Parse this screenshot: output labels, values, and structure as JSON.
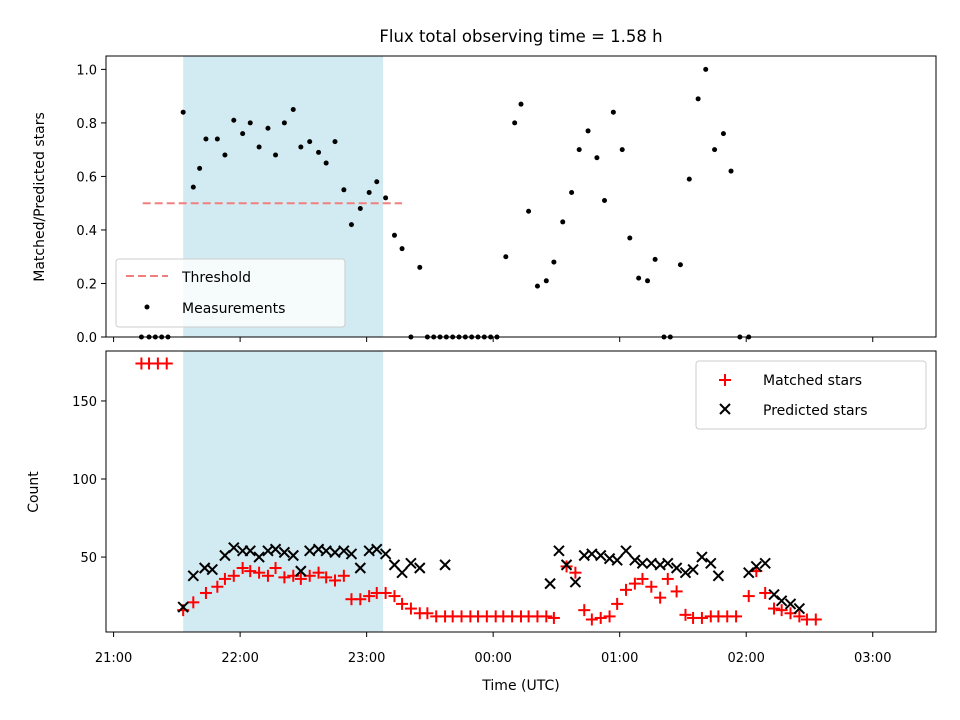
{
  "chart_data": [
    {
      "type": "scatter",
      "title": "Flux total observing time = 1.58 h",
      "xlabel": "",
      "ylabel": "Matched/Predicted stars",
      "ylim": [
        0,
        1.05
      ],
      "yticks": [
        "0.0",
        "0.2",
        "0.4",
        "0.6",
        "0.8",
        "1.0"
      ],
      "y_tick_values": [
        0,
        0.2,
        0.4,
        0.6,
        0.8,
        1.0
      ],
      "legend_placement": "lower-left",
      "shaded_interval_hours": [
        21.55,
        23.13
      ],
      "threshold": {
        "name": "Threshold",
        "value": 0.5,
        "x_range": [
          21.23,
          23.28
        ],
        "color": "#f08080"
      },
      "series": [
        {
          "name": "Measurements",
          "color": "#000000",
          "points": [
            [
              21.22,
              0
            ],
            [
              21.28,
              0
            ],
            [
              21.33,
              0
            ],
            [
              21.38,
              0
            ],
            [
              21.43,
              0
            ],
            [
              21.55,
              0.84
            ],
            [
              21.63,
              0.56
            ],
            [
              21.68,
              0.63
            ],
            [
              21.73,
              0.74
            ],
            [
              21.82,
              0.74
            ],
            [
              21.88,
              0.68
            ],
            [
              21.95,
              0.81
            ],
            [
              22.02,
              0.76
            ],
            [
              22.08,
              0.8
            ],
            [
              22.15,
              0.71
            ],
            [
              22.22,
              0.78
            ],
            [
              22.28,
              0.68
            ],
            [
              22.35,
              0.8
            ],
            [
              22.42,
              0.85
            ],
            [
              22.48,
              0.71
            ],
            [
              22.55,
              0.73
            ],
            [
              22.62,
              0.69
            ],
            [
              22.68,
              0.65
            ],
            [
              22.75,
              0.73
            ],
            [
              22.82,
              0.55
            ],
            [
              22.88,
              0.42
            ],
            [
              22.95,
              0.48
            ],
            [
              23.02,
              0.54
            ],
            [
              23.08,
              0.58
            ],
            [
              23.15,
              0.52
            ],
            [
              23.22,
              0.38
            ],
            [
              23.28,
              0.33
            ],
            [
              23.35,
              0.0
            ],
            [
              23.42,
              0.26
            ],
            [
              23.48,
              0.0
            ],
            [
              23.53,
              0.0
            ],
            [
              23.58,
              0.0
            ],
            [
              23.63,
              0.0
            ],
            [
              23.68,
              0.0
            ],
            [
              23.73,
              0.0
            ],
            [
              23.78,
              0.0
            ],
            [
              23.83,
              0.0
            ],
            [
              23.88,
              0.0
            ],
            [
              23.93,
              0.0
            ],
            [
              23.98,
              0.0
            ],
            [
              24.03,
              0.0
            ],
            [
              24.1,
              0.3
            ],
            [
              24.17,
              0.8
            ],
            [
              24.22,
              0.87
            ],
            [
              24.28,
              0.47
            ],
            [
              24.35,
              0.19
            ],
            [
              24.42,
              0.21
            ],
            [
              24.48,
              0.28
            ],
            [
              24.55,
              0.43
            ],
            [
              24.62,
              0.54
            ],
            [
              24.68,
              0.7
            ],
            [
              24.75,
              0.77
            ],
            [
              24.82,
              0.67
            ],
            [
              24.88,
              0.51
            ],
            [
              24.95,
              0.84
            ],
            [
              25.02,
              0.7
            ],
            [
              25.08,
              0.37
            ],
            [
              25.15,
              0.22
            ],
            [
              25.22,
              0.21
            ],
            [
              25.28,
              0.29
            ],
            [
              25.35,
              0.0
            ],
            [
              25.4,
              0.0
            ],
            [
              25.48,
              0.27
            ],
            [
              25.55,
              0.59
            ],
            [
              25.62,
              0.89
            ],
            [
              25.68,
              1.0
            ],
            [
              25.75,
              0.7
            ],
            [
              25.82,
              0.76
            ],
            [
              25.88,
              0.62
            ],
            [
              25.95,
              0.0
            ],
            [
              26.02,
              0.0
            ]
          ]
        }
      ]
    },
    {
      "type": "scatter",
      "xlabel": "Time (UTC)",
      "ylabel": "Count",
      "ylim": [
        2,
        182
      ],
      "yticks": [
        "50",
        "100",
        "150"
      ],
      "y_tick_values": [
        50,
        100,
        150
      ],
      "xticks": [
        "21:00",
        "22:00",
        "23:00",
        "00:00",
        "01:00",
        "02:00",
        "03:00"
      ],
      "x_tick_values": [
        21,
        22,
        23,
        24,
        25,
        26,
        27
      ],
      "xlim": [
        20.94,
        27.5
      ],
      "legend_placement": "upper-right",
      "shaded_interval_hours": [
        21.55,
        23.13
      ],
      "series": [
        {
          "name": "Matched stars",
          "marker": "+",
          "color": "#ff0000",
          "points": [
            [
              21.22,
              174
            ],
            [
              21.28,
              174
            ],
            [
              21.35,
              174
            ],
            [
              21.42,
              174
            ],
            [
              21.55,
              16
            ],
            [
              21.63,
              21
            ],
            [
              21.73,
              27
            ],
            [
              21.82,
              31
            ],
            [
              21.88,
              36
            ],
            [
              21.95,
              38
            ],
            [
              22.02,
              43
            ],
            [
              22.08,
              41
            ],
            [
              22.15,
              40
            ],
            [
              22.22,
              38
            ],
            [
              22.28,
              43
            ],
            [
              22.35,
              37
            ],
            [
              22.42,
              38
            ],
            [
              22.48,
              36
            ],
            [
              22.55,
              38
            ],
            [
              22.62,
              40
            ],
            [
              22.68,
              37
            ],
            [
              22.75,
              35
            ],
            [
              22.82,
              38
            ],
            [
              22.88,
              23
            ],
            [
              22.95,
              23
            ],
            [
              23.02,
              25
            ],
            [
              23.08,
              27
            ],
            [
              23.15,
              27
            ],
            [
              23.22,
              25
            ],
            [
              23.28,
              20
            ],
            [
              23.35,
              17
            ],
            [
              23.42,
              14
            ],
            [
              23.48,
              14
            ],
            [
              23.55,
              12
            ],
            [
              23.62,
              12
            ],
            [
              23.68,
              12
            ],
            [
              23.75,
              12
            ],
            [
              23.82,
              12
            ],
            [
              23.88,
              12
            ],
            [
              23.95,
              12
            ],
            [
              24.02,
              12
            ],
            [
              24.08,
              12
            ],
            [
              24.15,
              12
            ],
            [
              24.22,
              12
            ],
            [
              24.28,
              12
            ],
            [
              24.35,
              12
            ],
            [
              24.42,
              12
            ],
            [
              24.48,
              11
            ],
            [
              24.58,
              44
            ],
            [
              24.65,
              40
            ],
            [
              24.72,
              16
            ],
            [
              24.78,
              10
            ],
            [
              24.85,
              11
            ],
            [
              24.92,
              12
            ],
            [
              24.98,
              20
            ],
            [
              25.05,
              29
            ],
            [
              25.12,
              33
            ],
            [
              25.18,
              36
            ],
            [
              25.25,
              31
            ],
            [
              25.32,
              24
            ],
            [
              25.38,
              36
            ],
            [
              25.45,
              28
            ],
            [
              25.52,
              13
            ],
            [
              25.58,
              11
            ],
            [
              25.65,
              11
            ],
            [
              25.72,
              12
            ],
            [
              25.78,
              12
            ],
            [
              25.85,
              12
            ],
            [
              25.92,
              12
            ],
            [
              26.02,
              25
            ],
            [
              26.08,
              41
            ],
            [
              26.15,
              27
            ],
            [
              26.22,
              17
            ],
            [
              26.28,
              16
            ],
            [
              26.35,
              14
            ],
            [
              26.42,
              12
            ],
            [
              26.48,
              10
            ],
            [
              26.55,
              10
            ]
          ]
        },
        {
          "name": "Predicted stars",
          "marker": "x",
          "color": "#000000",
          "points": [
            [
              21.55,
              18
            ],
            [
              21.63,
              38
            ],
            [
              21.72,
              43
            ],
            [
              21.78,
              42
            ],
            [
              21.88,
              51
            ],
            [
              21.95,
              56
            ],
            [
              22.02,
              54
            ],
            [
              22.08,
              54
            ],
            [
              22.15,
              50
            ],
            [
              22.22,
              54
            ],
            [
              22.28,
              55
            ],
            [
              22.35,
              53
            ],
            [
              22.42,
              51
            ],
            [
              22.48,
              41
            ],
            [
              22.55,
              54
            ],
            [
              22.62,
              55
            ],
            [
              22.68,
              54
            ],
            [
              22.75,
              53
            ],
            [
              22.82,
              54
            ],
            [
              22.88,
              52
            ],
            [
              22.95,
              43
            ],
            [
              23.02,
              54
            ],
            [
              23.08,
              55
            ],
            [
              23.15,
              52
            ],
            [
              23.22,
              45
            ],
            [
              23.28,
              40
            ],
            [
              23.35,
              46
            ],
            [
              23.42,
              43
            ],
            [
              23.62,
              45
            ],
            [
              24.45,
              33
            ],
            [
              24.52,
              54
            ],
            [
              24.58,
              45
            ],
            [
              24.65,
              34
            ],
            [
              24.72,
              51
            ],
            [
              24.78,
              52
            ],
            [
              24.85,
              51
            ],
            [
              24.92,
              49
            ],
            [
              24.98,
              48
            ],
            [
              25.05,
              54
            ],
            [
              25.12,
              48
            ],
            [
              25.18,
              46
            ],
            [
              25.25,
              46
            ],
            [
              25.32,
              45
            ],
            [
              25.38,
              46
            ],
            [
              25.45,
              43
            ],
            [
              25.52,
              40
            ],
            [
              25.58,
              42
            ],
            [
              25.65,
              50
            ],
            [
              25.72,
              46
            ],
            [
              25.78,
              38
            ],
            [
              26.02,
              40
            ],
            [
              26.08,
              44
            ],
            [
              26.15,
              46
            ],
            [
              26.22,
              26
            ],
            [
              26.28,
              22
            ],
            [
              26.35,
              20
            ],
            [
              26.42,
              17
            ]
          ]
        }
      ]
    }
  ]
}
